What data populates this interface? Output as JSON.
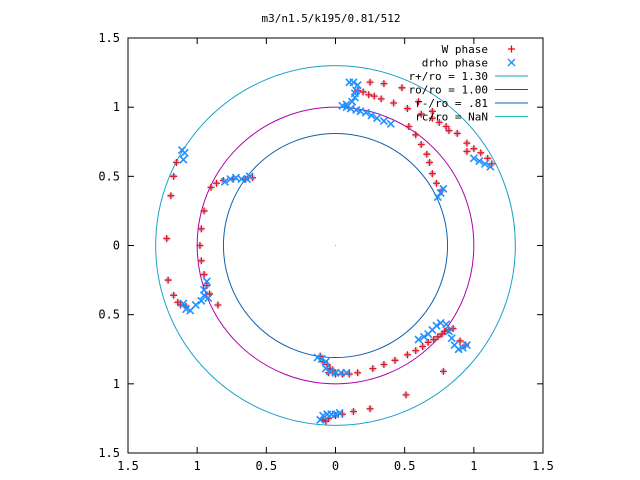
{
  "chart_data": {
    "type": "scatter",
    "title": "m3/n1.5/k195/0.81/512",
    "xlabel": "",
    "ylabel": "",
    "xlim": [
      -1.5,
      1.5
    ],
    "ylim": [
      -1.5,
      1.5
    ],
    "x_ticks": [
      -1.5,
      -1,
      -0.5,
      0,
      0.5,
      1,
      1.5
    ],
    "x_tick_labels": [
      "1.5",
      "1",
      "0.5",
      "0",
      "0.5",
      "1",
      "1.5"
    ],
    "y_ticks": [
      1.5,
      1,
      0.5,
      0,
      -0.5,
      -1,
      -1.5
    ],
    "y_tick_labels": [
      "1.5",
      "1",
      "0.5",
      "0",
      "0.5",
      "1",
      "1.5"
    ],
    "grid": false,
    "legend_position": "top-right",
    "colors": {
      "w_phase": "#ff0000",
      "drho_phase": "#1e90ff",
      "r_plus": "#1fa0c8",
      "r_o": "#b000b0",
      "r_minus": "#1060b0",
      "r_c": "#20c0c0"
    },
    "circles": [
      {
        "label": "r+/ro = 1.30",
        "radius": 1.3,
        "color": "#1fa0c8"
      },
      {
        "label": "ro/ro = 1.00",
        "radius": 1.0,
        "color": "#b000b0"
      },
      {
        "label": "r-/ro = .81",
        "radius": 0.81,
        "color": "#1060b0"
      },
      {
        "label": "rc/ro = NaN",
        "radius": null,
        "color": "#20c0c0"
      }
    ],
    "series": [
      {
        "name": "W phase",
        "marker": "+",
        "color": "#ff0000",
        "points": [
          [
            1.13,
            0.59
          ],
          [
            1.1,
            0.63
          ],
          [
            1.05,
            0.67
          ],
          [
            1.0,
            0.7
          ],
          [
            0.95,
            0.74
          ],
          [
            0.88,
            0.81
          ],
          [
            0.8,
            0.86
          ],
          [
            0.75,
            0.89
          ],
          [
            0.7,
            0.92
          ],
          [
            0.62,
            0.95
          ],
          [
            0.52,
            0.99
          ],
          [
            0.42,
            1.03
          ],
          [
            0.33,
            1.06
          ],
          [
            0.28,
            1.08
          ],
          [
            0.24,
            1.09
          ],
          [
            0.2,
            1.11
          ],
          [
            0.16,
            1.12
          ],
          [
            0.25,
            1.18
          ],
          [
            0.35,
            1.17
          ],
          [
            0.48,
            1.14
          ],
          [
            0.6,
            1.04
          ],
          [
            0.7,
            0.97
          ],
          [
            0.82,
            0.83
          ],
          [
            0.95,
            0.68
          ],
          [
            0.77,
            0.4
          ],
          [
            0.73,
            0.45
          ],
          [
            0.7,
            0.52
          ],
          [
            0.68,
            0.6
          ],
          [
            0.66,
            0.66
          ],
          [
            0.62,
            0.73
          ],
          [
            0.58,
            0.8
          ],
          [
            0.53,
            0.86
          ],
          [
            -1.15,
            0.6
          ],
          [
            -1.17,
            0.5
          ],
          [
            -1.19,
            0.36
          ],
          [
            -1.22,
            0.05
          ],
          [
            -1.21,
            -0.25
          ],
          [
            -1.17,
            -0.36
          ],
          [
            -1.14,
            -0.41
          ],
          [
            -1.12,
            -0.43
          ],
          [
            -1.08,
            -0.44
          ],
          [
            -0.95,
            0.25
          ],
          [
            -0.97,
            0.12
          ],
          [
            -0.98,
            0.0
          ],
          [
            -0.97,
            -0.11
          ],
          [
            -0.95,
            -0.21
          ],
          [
            -0.93,
            -0.29
          ],
          [
            -0.91,
            -0.35
          ],
          [
            -0.85,
            -0.43
          ],
          [
            -0.9,
            0.42
          ],
          [
            -0.86,
            0.45
          ],
          [
            -0.81,
            0.47
          ],
          [
            -0.74,
            0.48
          ],
          [
            -0.65,
            0.48
          ],
          [
            -0.6,
            0.49
          ],
          [
            -0.05,
            -0.92
          ],
          [
            0.0,
            -0.93
          ],
          [
            0.05,
            -0.93
          ],
          [
            0.1,
            -0.93
          ],
          [
            0.16,
            -0.92
          ],
          [
            0.27,
            -0.89
          ],
          [
            0.35,
            -0.86
          ],
          [
            0.43,
            -0.83
          ],
          [
            0.52,
            -0.79
          ],
          [
            0.58,
            -0.76
          ],
          [
            0.63,
            -0.73
          ],
          [
            0.67,
            -0.7
          ],
          [
            0.71,
            -0.68
          ],
          [
            0.74,
            -0.66
          ],
          [
            0.77,
            -0.64
          ],
          [
            0.79,
            -0.62
          ],
          [
            0.82,
            -0.61
          ],
          [
            0.85,
            -0.6
          ],
          [
            0.9,
            -0.69
          ],
          [
            0.94,
            -0.72
          ],
          [
            0.78,
            -0.91
          ],
          [
            0.51,
            -1.08
          ],
          [
            0.25,
            -1.18
          ],
          [
            0.13,
            -1.2
          ],
          [
            0.05,
            -1.22
          ],
          [
            0.0,
            -1.23
          ],
          [
            -0.09,
            -1.26
          ],
          [
            -0.07,
            -1.27
          ],
          [
            -0.05,
            -1.25
          ],
          [
            -0.11,
            -0.8
          ],
          [
            -0.09,
            -0.84
          ],
          [
            -0.06,
            -0.86
          ],
          [
            -0.04,
            -0.89
          ],
          [
            -0.02,
            -0.9
          ]
        ]
      },
      {
        "name": "drho phase",
        "marker": "x",
        "color": "#1e90ff",
        "points": [
          [
            0.1,
            1.18
          ],
          [
            0.13,
            1.18
          ],
          [
            0.16,
            1.16
          ],
          [
            0.15,
            1.12
          ],
          [
            0.14,
            1.1
          ],
          [
            0.14,
            1.07
          ],
          [
            0.12,
            1.04
          ],
          [
            0.08,
            1.02
          ],
          [
            0.05,
            1.01
          ],
          [
            0.08,
            1.0
          ],
          [
            0.11,
            0.99
          ],
          [
            0.15,
            0.98
          ],
          [
            0.18,
            0.97
          ],
          [
            0.22,
            0.96
          ],
          [
            0.26,
            0.94
          ],
          [
            0.3,
            0.92
          ],
          [
            0.35,
            0.9
          ],
          [
            0.4,
            0.88
          ],
          [
            1.12,
            0.57
          ],
          [
            1.08,
            0.59
          ],
          [
            1.04,
            0.61
          ],
          [
            1.0,
            0.63
          ],
          [
            0.74,
            0.35
          ],
          [
            0.76,
            0.38
          ],
          [
            0.78,
            0.41
          ],
          [
            -1.11,
            0.69
          ],
          [
            -1.09,
            0.67
          ],
          [
            -1.1,
            0.62
          ],
          [
            -0.8,
            0.46
          ],
          [
            -0.76,
            0.48
          ],
          [
            -0.72,
            0.49
          ],
          [
            -0.68,
            0.48
          ],
          [
            -0.64,
            0.48
          ],
          [
            -0.62,
            0.5
          ],
          [
            -1.1,
            -0.42
          ],
          [
            -1.08,
            -0.46
          ],
          [
            -1.05,
            -0.47
          ],
          [
            -1.01,
            -0.43
          ],
          [
            -0.97,
            -0.4
          ],
          [
            -0.95,
            -0.36
          ],
          [
            -0.92,
            -0.38
          ],
          [
            -0.95,
            -0.32
          ],
          [
            -0.93,
            -0.26
          ],
          [
            0.6,
            -0.68
          ],
          [
            0.64,
            -0.66
          ],
          [
            0.67,
            -0.64
          ],
          [
            0.7,
            -0.61
          ],
          [
            0.73,
            -0.58
          ],
          [
            0.76,
            -0.56
          ],
          [
            0.8,
            -0.57
          ],
          [
            0.82,
            -0.62
          ],
          [
            0.84,
            -0.67
          ],
          [
            0.86,
            -0.72
          ],
          [
            0.89,
            -0.75
          ],
          [
            0.92,
            -0.74
          ],
          [
            0.95,
            -0.72
          ],
          [
            -0.13,
            -0.81
          ],
          [
            -0.1,
            -0.82
          ],
          [
            -0.07,
            -0.84
          ],
          [
            -0.07,
            -0.89
          ],
          [
            -0.04,
            -0.91
          ],
          [
            0.0,
            -0.92
          ],
          [
            0.04,
            -0.92
          ],
          [
            0.08,
            -0.92
          ],
          [
            -0.11,
            -1.26
          ],
          [
            -0.09,
            -1.23
          ],
          [
            -0.06,
            -1.22
          ],
          [
            -0.03,
            -1.22
          ],
          [
            0.0,
            -1.22
          ],
          [
            0.03,
            -1.21
          ]
        ]
      }
    ]
  }
}
